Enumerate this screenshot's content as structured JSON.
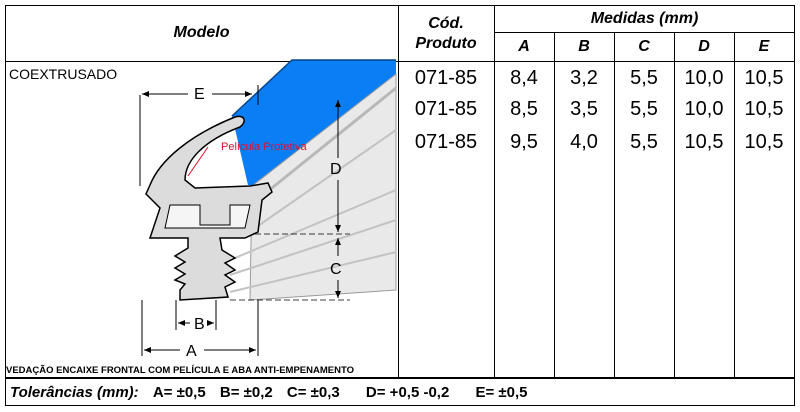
{
  "headers": {
    "modelo": "Modelo",
    "cod_produto": [
      "Cód.",
      "Produto"
    ],
    "medidas": "Medidas (mm)",
    "cols": [
      "A",
      "B",
      "C",
      "D",
      "E"
    ]
  },
  "model_name": "COEXTRUSADO",
  "description": "VEDAÇÃO ENCAIXE FRONTAL COM PELÍCULA E ABA ANTI-EMPENAMENTO",
  "drawing_labels": {
    "pelicula": "Película Protetiva",
    "dim_A": "A",
    "dim_B": "B",
    "dim_C": "C",
    "dim_D": "D",
    "dim_E": "E"
  },
  "rows": [
    {
      "cod": "071-85",
      "A": "8,4",
      "B": "3,2",
      "C": "5,5",
      "D": "10,0",
      "E": "10,5"
    },
    {
      "cod": "071-85",
      "A": "8,5",
      "B": "3,5",
      "C": "5,5",
      "D": "10,0",
      "E": "10,5"
    },
    {
      "cod": "071-85",
      "A": "9,5",
      "B": "4,0",
      "C": "5,5",
      "D": "10,5",
      "E": "10,5"
    }
  ],
  "tolerances": {
    "label": "Tolerâncias (mm):",
    "items": [
      "A= ±0,5",
      "B= ±0,2",
      "C= ±0,3",
      "D= +0,5 -0,2",
      "E= ±0,5"
    ]
  },
  "colors": {
    "film_blue": "#0a7ff5",
    "annotation_red": "#e0102a",
    "profile_grey": "#bdbdbd"
  }
}
